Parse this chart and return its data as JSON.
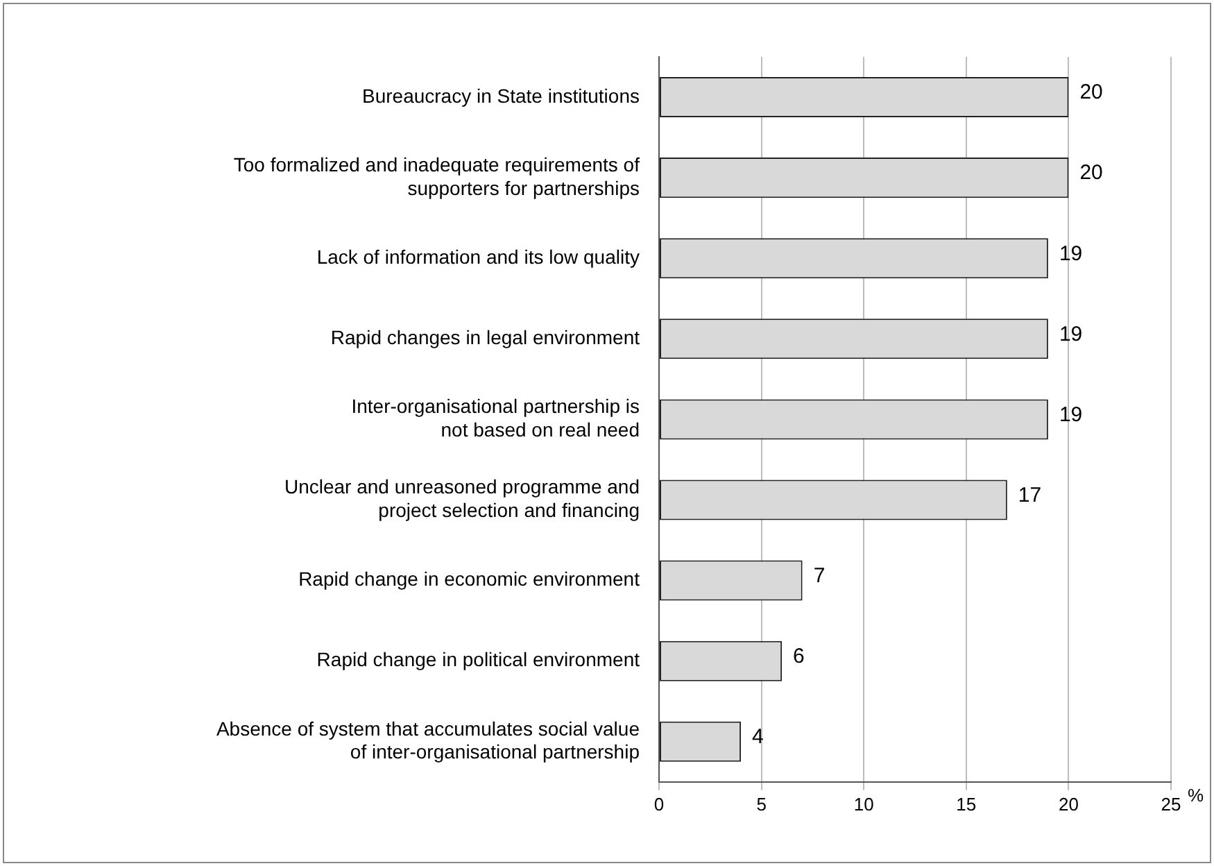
{
  "chart_data": {
    "type": "bar",
    "orientation": "horizontal",
    "categories": [
      "Bureaucracy in State institutions",
      "Too formalized and inadequate requirements of\nsupporters for partnerships",
      "Lack of information and its low quality",
      "Rapid changes in legal environment",
      "Inter-organisational partnership is\nnot based on real need",
      "Unclear and unreasoned programme and\nproject selection and financing",
      "Rapid change in economic environment",
      "Rapid change in political environment",
      "Absence of system that accumulates social value\nof inter-organisational partnership"
    ],
    "values": [
      20,
      20,
      19,
      19,
      19,
      17,
      7,
      6,
      4
    ],
    "color": "#d9d9d9",
    "xlabel": "%",
    "xlim": [
      0,
      25
    ],
    "xticks": [
      0,
      5,
      10,
      15,
      20,
      25
    ],
    "grid": "x",
    "data_labels": true,
    "legend": false
  }
}
